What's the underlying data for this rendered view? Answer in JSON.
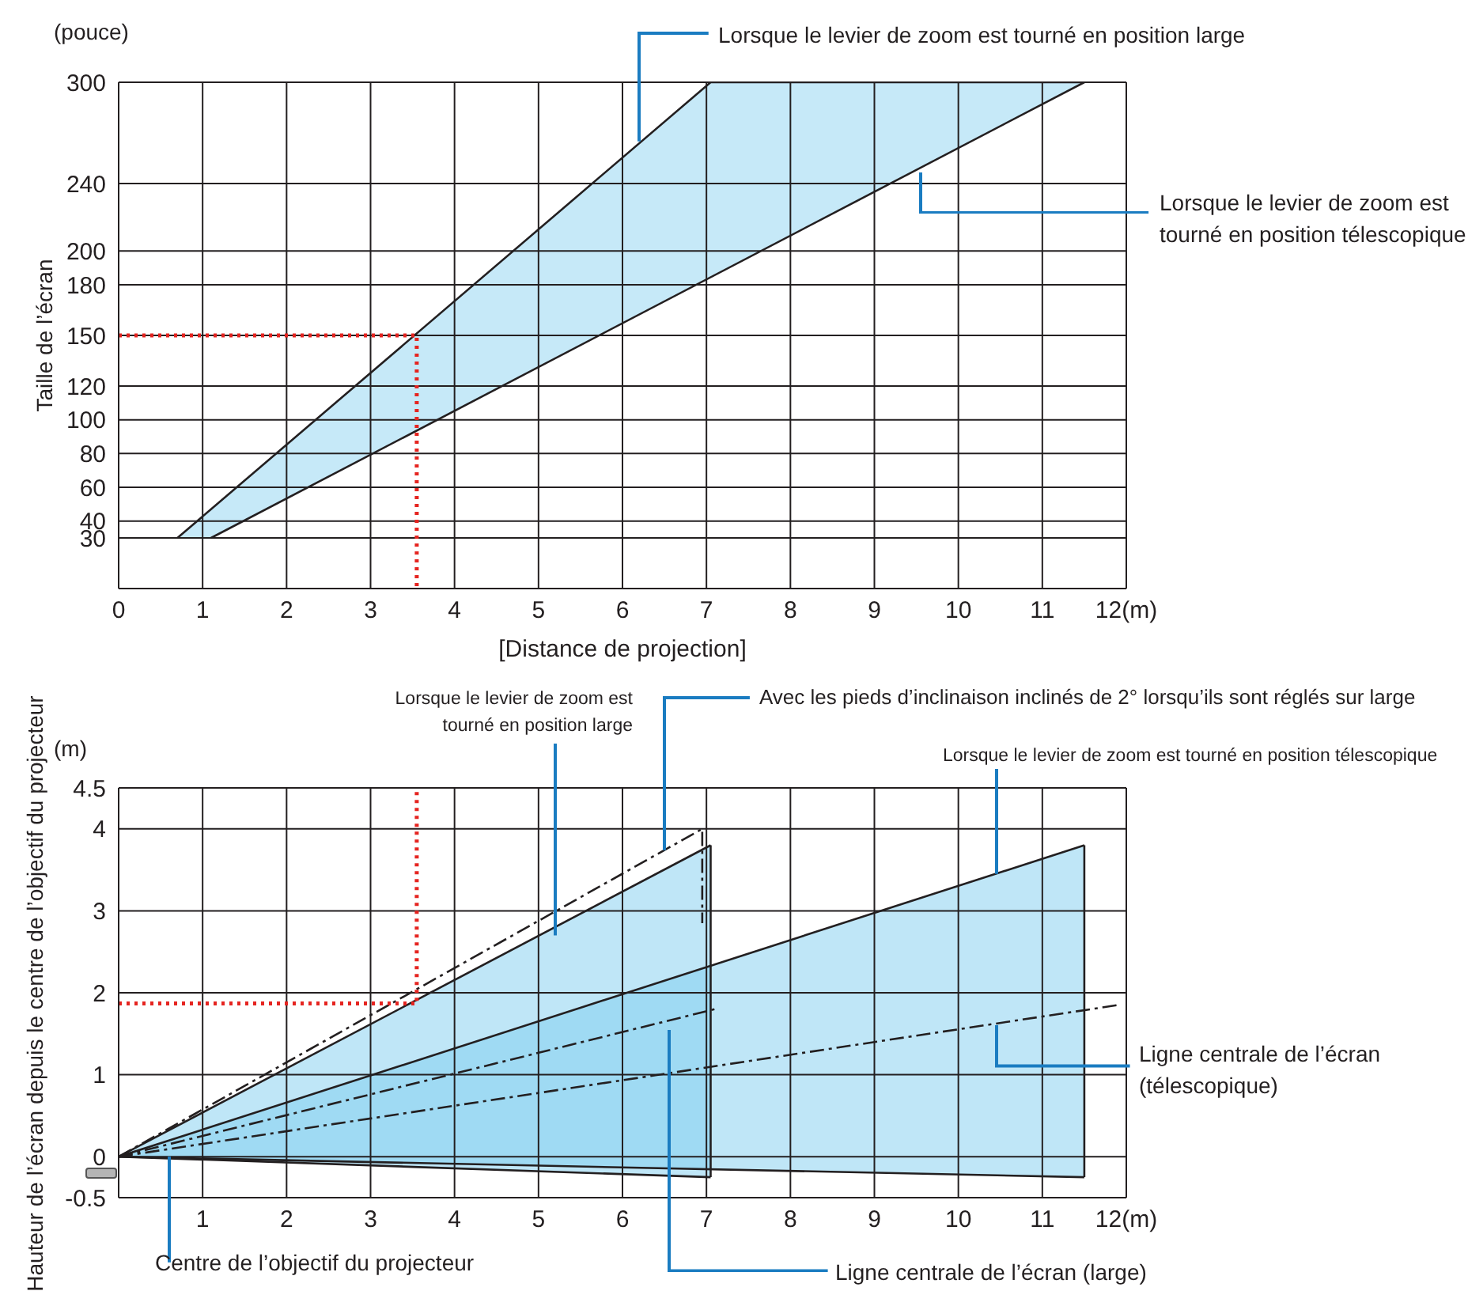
{
  "chart_data": [
    {
      "type": "line",
      "ylabel": "Taille de l’écran",
      "xlabel": "[Distance de projection]",
      "xlim": [
        0,
        12
      ],
      "xticks": [
        0,
        1,
        2,
        3,
        4,
        5,
        6,
        7,
        8,
        9,
        10,
        11,
        {
          "value": 12,
          "label": "12(m)"
        }
      ],
      "ylim": [
        0,
        300
      ],
      "yticks": [
        30,
        40,
        60,
        80,
        100,
        120,
        150,
        180,
        200,
        240,
        300
      ],
      "grid": true,
      "marker": "none",
      "series": [
        {
          "type": "line",
          "color": "#231f20",
          "x": [
            0.7,
            1.1,
            7.05,
            11.5
          ],
          "values": [
            30,
            47,
            300,
            300
          ],
          "lower": [
            30,
            30,
            185,
            300
          ],
          "upper": [
            30,
            47,
            300,
            300
          ]
        },
        {
          "type": "line",
          "color": "#231f20",
          "x": [
            1.1,
            11.5
          ],
          "values": [
            30,
            300
          ]
        },
        {
          "type": "line",
          "color": "#e52420",
          "line_style": "dotted",
          "x": [
            0,
            3.55,
            3.55
          ],
          "values": [
            150,
            150,
            0
          ]
        }
      ],
      "annotations": [
        "(pouce)",
        {
          "text": "Lorsque le levier de zoom est tourné en position large",
          "x": 6.2,
          "y": 265
        },
        {
          "text": "Lorsque le levier de zoom est tourné en position télescopique",
          "x": 9.55,
          "y": 247
        }
      ]
    },
    {
      "type": "line",
      "ylabel": "Hauteur de l’écran depuis le centre de l’objectif du projecteur",
      "xlim": [
        0,
        12
      ],
      "xticks": [
        1,
        2,
        3,
        4,
        5,
        6,
        7,
        8,
        9,
        10,
        11,
        {
          "value": 12,
          "label": "12(m)"
        }
      ],
      "ylim": [
        -0.5,
        4.5
      ],
      "yticks": [
        -0.5,
        0,
        1,
        2,
        3,
        4,
        4.5
      ],
      "grid": true,
      "marker": "none",
      "series": [
        {
          "type": "line",
          "color": "#231f20",
          "x": [
            0,
            11.5
          ],
          "values": [
            0,
            3.8
          ],
          "lower": [
            0,
            -0.25
          ],
          "upper": [
            0,
            3.8
          ]
        },
        {
          "type": "line",
          "color": "#231f20",
          "x": [
            0,
            11.5
          ],
          "values": [
            0,
            -0.25
          ]
        },
        {
          "type": "line",
          "color": "#231f20",
          "x": [
            11.5,
            11.5
          ],
          "values": [
            -0.25,
            3.8
          ]
        },
        {
          "type": "line",
          "color": "#231f20",
          "x": [
            0,
            7.05
          ],
          "values": [
            0,
            3.8
          ],
          "lower": [
            0,
            -0.25
          ],
          "upper": [
            0,
            3.8
          ]
        },
        {
          "type": "line",
          "color": "#231f20",
          "x": [
            0,
            7.05
          ],
          "values": [
            0,
            -0.25
          ]
        },
        {
          "type": "line",
          "color": "#231f20",
          "x": [
            7.05,
            7.05
          ],
          "values": [
            -0.25,
            3.8
          ]
        },
        {
          "type": "line",
          "color": "#231f20",
          "line_style": "dashed",
          "x": [
            0,
            6.95,
            6.95
          ],
          "values": [
            0,
            4.0,
            2.85
          ]
        },
        {
          "type": "line",
          "color": "#231f20",
          "line_style": "dashed",
          "x": [
            0,
            7.1
          ],
          "values": [
            0,
            1.8
          ]
        },
        {
          "type": "line",
          "color": "#231f20",
          "line_style": "dashed",
          "x": [
            0,
            11.9
          ],
          "values": [
            0,
            1.85
          ]
        },
        {
          "type": "line",
          "color": "#e52420",
          "line_style": "dotted",
          "x": [
            0,
            3.55,
            3.55
          ],
          "values": [
            1.87,
            1.87,
            4.5
          ]
        }
      ],
      "annotations": [
        "(m)",
        {
          "text": "Lorsque le levier de zoom est tourné en position large",
          "x": 5.2,
          "y": 2.7
        },
        {
          "text": "Avec les pieds d’inclinaison inclinés de 2° lorsqu’ils sont réglés sur large",
          "x": 6.5,
          "y": 3.74
        },
        {
          "text": "Lorsque le levier de zoom est tourné en position télescopique",
          "x": 10.45,
          "y": 3.45
        },
        {
          "text": "Ligne centrale de l’écran (télescopique)",
          "x": 10.45,
          "y": 1.6
        },
        {
          "text": "Ligne centrale de l’écran (large)",
          "x": 6.55,
          "y": 1.55
        },
        {
          "text": "Centre de l’objectif du projecteur",
          "x": 0.6,
          "y": 0
        }
      ]
    }
  ]
}
